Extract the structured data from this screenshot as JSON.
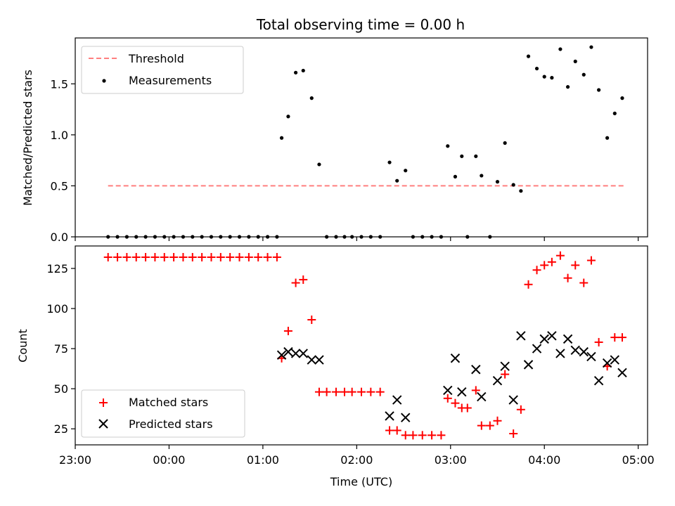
{
  "title": "Total observing time = 0.00 h",
  "chart_data": [
    {
      "type": "scatter",
      "panel": "top",
      "ylabel": "Matched/Predicted stars",
      "xlabel": "",
      "ylim": [
        0,
        1.95
      ],
      "yticks": [
        "0.0",
        "0.5",
        "1.0",
        "1.5"
      ],
      "grid": false,
      "legend": "upper-left",
      "threshold": {
        "name": "Threshold",
        "value": 0.5,
        "x_start": 23.35,
        "x_end": 4.85,
        "color": "#ff7f7f"
      },
      "series": [
        {
          "name": "Measurements",
          "marker": "dot",
          "color": "#000000",
          "points": [
            [
              23.35,
              0
            ],
            [
              23.45,
              0
            ],
            [
              23.55,
              0
            ],
            [
              23.65,
              0
            ],
            [
              23.75,
              0
            ],
            [
              23.85,
              0
            ],
            [
              23.95,
              0
            ],
            [
              24.05,
              0
            ],
            [
              24.15,
              0
            ],
            [
              24.25,
              0
            ],
            [
              24.35,
              0
            ],
            [
              24.45,
              0
            ],
            [
              24.55,
              0
            ],
            [
              24.65,
              0
            ],
            [
              24.75,
              0
            ],
            [
              24.85,
              0
            ],
            [
              24.95,
              0
            ],
            [
              25.05,
              0
            ],
            [
              25.15,
              0
            ],
            [
              25.2,
              0.97
            ],
            [
              25.27,
              1.18
            ],
            [
              25.35,
              1.61
            ],
            [
              25.43,
              1.63
            ],
            [
              25.52,
              1.36
            ],
            [
              25.6,
              0.71
            ],
            [
              25.68,
              0
            ],
            [
              25.78,
              0
            ],
            [
              25.87,
              0
            ],
            [
              25.95,
              0
            ],
            [
              26.05,
              0
            ],
            [
              26.15,
              0
            ],
            [
              26.25,
              0
            ],
            [
              26.35,
              0.73
            ],
            [
              26.43,
              0.55
            ],
            [
              26.52,
              0.65
            ],
            [
              26.6,
              0
            ],
            [
              26.7,
              0
            ],
            [
              26.8,
              0
            ],
            [
              26.9,
              0
            ],
            [
              26.97,
              0.89
            ],
            [
              27.05,
              0.59
            ],
            [
              27.12,
              0.79
            ],
            [
              27.18,
              0
            ],
            [
              27.27,
              0.79
            ],
            [
              27.33,
              0.6
            ],
            [
              27.42,
              0
            ],
            [
              27.5,
              0.54
            ],
            [
              27.58,
              0.92
            ],
            [
              27.67,
              0.51
            ],
            [
              27.75,
              0.45
            ],
            [
              27.83,
              1.77
            ],
            [
              27.92,
              1.65
            ],
            [
              28.0,
              1.57
            ],
            [
              28.08,
              1.56
            ],
            [
              28.17,
              1.84
            ],
            [
              28.25,
              1.47
            ],
            [
              28.33,
              1.72
            ],
            [
              28.42,
              1.59
            ],
            [
              28.5,
              1.86
            ],
            [
              28.58,
              1.44
            ],
            [
              28.67,
              0.97
            ],
            [
              28.75,
              1.21
            ],
            [
              28.83,
              1.36
            ]
          ]
        }
      ]
    },
    {
      "type": "scatter",
      "panel": "bottom",
      "xlabel": "Time (UTC)",
      "ylabel": "Count",
      "xlim": [
        23.0,
        29.1
      ],
      "ylim": [
        15,
        139
      ],
      "xticks": [
        "23:00",
        "00:00",
        "01:00",
        "02:00",
        "03:00",
        "04:00",
        "05:00"
      ],
      "yticks": [
        "25",
        "50",
        "75",
        "100",
        "125"
      ],
      "grid": false,
      "legend": "lower-left",
      "series": [
        {
          "name": "Matched stars",
          "marker": "plus",
          "color": "#ff0000",
          "points": [
            [
              23.35,
              132
            ],
            [
              23.45,
              132
            ],
            [
              23.55,
              132
            ],
            [
              23.65,
              132
            ],
            [
              23.75,
              132
            ],
            [
              23.85,
              132
            ],
            [
              23.95,
              132
            ],
            [
              24.05,
              132
            ],
            [
              24.15,
              132
            ],
            [
              24.25,
              132
            ],
            [
              24.35,
              132
            ],
            [
              24.45,
              132
            ],
            [
              24.55,
              132
            ],
            [
              24.65,
              132
            ],
            [
              24.75,
              132
            ],
            [
              24.85,
              132
            ],
            [
              24.95,
              132
            ],
            [
              25.05,
              132
            ],
            [
              25.15,
              132
            ],
            [
              25.2,
              69
            ],
            [
              25.27,
              86
            ],
            [
              25.35,
              116
            ],
            [
              25.43,
              118
            ],
            [
              25.52,
              93
            ],
            [
              25.6,
              48
            ],
            [
              25.68,
              48
            ],
            [
              25.78,
              48
            ],
            [
              25.87,
              48
            ],
            [
              25.95,
              48
            ],
            [
              26.05,
              48
            ],
            [
              26.15,
              48
            ],
            [
              26.25,
              48
            ],
            [
              26.35,
              24
            ],
            [
              26.43,
              24
            ],
            [
              26.52,
              21
            ],
            [
              26.6,
              21
            ],
            [
              26.7,
              21
            ],
            [
              26.8,
              21
            ],
            [
              26.9,
              21
            ],
            [
              26.97,
              44
            ],
            [
              27.05,
              41
            ],
            [
              27.12,
              38
            ],
            [
              27.18,
              38
            ],
            [
              27.27,
              49
            ],
            [
              27.33,
              27
            ],
            [
              27.42,
              27
            ],
            [
              27.5,
              30
            ],
            [
              27.58,
              59
            ],
            [
              27.67,
              22
            ],
            [
              27.75,
              37
            ],
            [
              27.83,
              115
            ],
            [
              27.92,
              124
            ],
            [
              28.0,
              127
            ],
            [
              28.08,
              129
            ],
            [
              28.17,
              133
            ],
            [
              28.25,
              119
            ],
            [
              28.33,
              127
            ],
            [
              28.42,
              116
            ],
            [
              28.5,
              130
            ],
            [
              28.58,
              79
            ],
            [
              28.67,
              64
            ],
            [
              28.75,
              82
            ],
            [
              28.83,
              82
            ]
          ]
        },
        {
          "name": "Predicted stars",
          "marker": "x",
          "color": "#000000",
          "points": [
            [
              25.2,
              71
            ],
            [
              25.27,
              73
            ],
            [
              25.35,
              72
            ],
            [
              25.43,
              72
            ],
            [
              25.52,
              68
            ],
            [
              25.6,
              68
            ],
            [
              26.35,
              33
            ],
            [
              26.43,
              43
            ],
            [
              26.52,
              32
            ],
            [
              26.97,
              49
            ],
            [
              27.05,
              69
            ],
            [
              27.12,
              48
            ],
            [
              27.27,
              62
            ],
            [
              27.33,
              45
            ],
            [
              27.5,
              55
            ],
            [
              27.58,
              64
            ],
            [
              27.67,
              43
            ],
            [
              27.75,
              83
            ],
            [
              27.83,
              65
            ],
            [
              27.92,
              75
            ],
            [
              28.0,
              81
            ],
            [
              28.08,
              83
            ],
            [
              28.17,
              72
            ],
            [
              28.25,
              81
            ],
            [
              28.33,
              74
            ],
            [
              28.42,
              73
            ],
            [
              28.5,
              70
            ],
            [
              28.58,
              55
            ],
            [
              28.67,
              66
            ],
            [
              28.75,
              68
            ],
            [
              28.83,
              60
            ]
          ]
        }
      ]
    }
  ]
}
